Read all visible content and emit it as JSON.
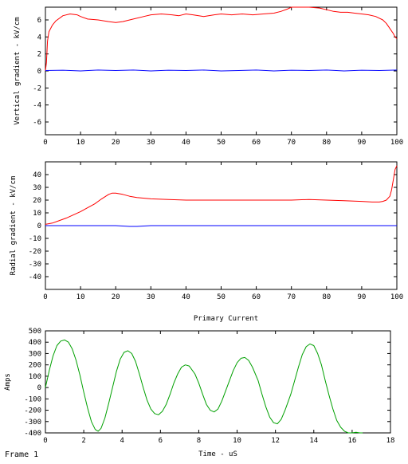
{
  "frame_label": "Frame 1",
  "colors": {
    "red": "#ff0000",
    "blue": "#0000ff",
    "green": "#00a000",
    "axis": "#000000"
  },
  "chart_data": [
    {
      "type": "line",
      "title": "",
      "xlabel": "",
      "ylabel": "Vertical gradient - kV/cm",
      "xlim": [
        0,
        100
      ],
      "ylim": [
        -7.5,
        7.5
      ],
      "xticks": [
        0,
        10,
        20,
        30,
        40,
        50,
        60,
        70,
        80,
        90,
        100
      ],
      "yticks": [
        -6,
        -4,
        -2,
        0,
        2,
        4,
        6
      ],
      "grid": false,
      "series": [
        {
          "color": "#ff0000",
          "x": [
            0,
            0.3,
            0.6,
            1,
            2,
            3,
            5,
            7,
            9,
            10,
            12,
            15,
            18,
            20,
            22,
            25,
            28,
            30,
            33,
            36,
            38,
            40,
            42,
            45,
            48,
            50,
            53,
            56,
            59,
            62,
            65,
            67,
            69,
            70,
            72,
            75,
            78,
            80,
            82,
            84,
            86,
            88,
            90,
            92,
            94,
            96,
            97,
            98,
            99,
            99.5,
            100
          ],
          "y": [
            0,
            1,
            3.5,
            4.6,
            5.4,
            5.9,
            6.5,
            6.7,
            6.6,
            6.4,
            6.1,
            6.0,
            5.8,
            5.7,
            5.8,
            6.1,
            6.4,
            6.6,
            6.7,
            6.6,
            6.5,
            6.7,
            6.6,
            6.4,
            6.6,
            6.7,
            6.6,
            6.7,
            6.6,
            6.7,
            6.8,
            7.0,
            7.3,
            7.5,
            7.6,
            7.6,
            7.4,
            7.2,
            7.0,
            6.9,
            6.9,
            6.8,
            6.7,
            6.6,
            6.4,
            6.0,
            5.6,
            5.0,
            4.4,
            4.0,
            3.8
          ]
        },
        {
          "color": "#0000ff",
          "x": [
            0,
            5,
            10,
            15,
            20,
            25,
            30,
            35,
            40,
            45,
            50,
            55,
            60,
            65,
            70,
            75,
            80,
            85,
            90,
            95,
            100
          ],
          "y": [
            0.05,
            0.08,
            0.0,
            0.1,
            0.05,
            0.1,
            0.0,
            0.08,
            0.05,
            0.1,
            0.0,
            0.05,
            0.1,
            0.0,
            0.08,
            0.05,
            0.1,
            0.0,
            0.08,
            0.05,
            0.1
          ]
        }
      ]
    },
    {
      "type": "line",
      "title": "",
      "xlabel": "",
      "ylabel": "Radial gradient - kV/cm",
      "xlim": [
        0,
        100
      ],
      "ylim": [
        -50,
        50
      ],
      "xticks": [
        0,
        10,
        20,
        30,
        40,
        50,
        60,
        70,
        80,
        90,
        100
      ],
      "yticks": [
        -40,
        -30,
        -20,
        -10,
        0,
        10,
        20,
        30,
        40
      ],
      "grid": false,
      "series": [
        {
          "color": "#ff0000",
          "x": [
            0,
            2,
            4,
            6,
            8,
            10,
            12,
            14,
            16,
            18,
            19,
            20,
            22,
            24,
            26,
            30,
            35,
            40,
            50,
            60,
            70,
            75,
            80,
            85,
            90,
            93,
            95,
            96,
            97,
            98,
            98.5,
            99,
            99.5,
            100
          ],
          "y": [
            1,
            2,
            4,
            6,
            8.5,
            11,
            14,
            17,
            21,
            24.5,
            25.5,
            25.5,
            24.5,
            23,
            22,
            21,
            20.5,
            20,
            20,
            20,
            20,
            20.5,
            20,
            19.5,
            19,
            18.5,
            18.5,
            19,
            20,
            23,
            28,
            36,
            44,
            47
          ]
        },
        {
          "color": "#0000ff",
          "x": [
            0,
            20,
            22,
            24,
            26,
            28,
            30,
            50,
            100
          ],
          "y": [
            0,
            0,
            -0.3,
            -0.6,
            -0.6,
            -0.3,
            0,
            0,
            0
          ]
        }
      ]
    },
    {
      "type": "line",
      "title": "Primary Current",
      "xlabel": "Time - uS",
      "ylabel": "Amps",
      "xlim": [
        0,
        18
      ],
      "ylim": [
        -400,
        500
      ],
      "xticks": [
        0,
        2,
        4,
        6,
        8,
        10,
        12,
        14,
        16,
        18
      ],
      "yticks": [
        -400,
        -300,
        -200,
        -100,
        0,
        100,
        200,
        300,
        400,
        500
      ],
      "grid": false,
      "series": [
        {
          "color": "#00a000",
          "x": [
            0,
            0.2,
            0.4,
            0.6,
            0.8,
            1.0,
            1.2,
            1.4,
            1.6,
            1.8,
            2.0,
            2.2,
            2.4,
            2.6,
            2.75,
            2.9,
            3.1,
            3.3,
            3.5,
            3.7,
            3.9,
            4.1,
            4.3,
            4.5,
            4.7,
            4.9,
            5.1,
            5.3,
            5.5,
            5.7,
            5.9,
            6.1,
            6.3,
            6.5,
            6.7,
            6.9,
            7.1,
            7.3,
            7.5,
            7.8,
            8.0,
            8.2,
            8.4,
            8.6,
            8.8,
            9.0,
            9.2,
            9.4,
            9.6,
            9.8,
            10.0,
            10.2,
            10.4,
            10.6,
            10.8,
            11.1,
            11.3,
            11.5,
            11.7,
            11.9,
            12.1,
            12.3,
            12.5,
            12.8,
            13.0,
            13.2,
            13.4,
            13.6,
            13.8,
            14.0,
            14.2,
            14.4,
            14.6,
            14.8,
            15.0,
            15.2,
            15.4,
            15.6,
            15.8,
            16.0,
            16.2,
            16.4,
            16.55
          ],
          "y": [
            0,
            150,
            280,
            370,
            410,
            420,
            400,
            340,
            240,
            110,
            -40,
            -180,
            -300,
            -370,
            -385,
            -360,
            -270,
            -140,
            0,
            140,
            250,
            310,
            325,
            300,
            230,
            120,
            0,
            -110,
            -190,
            -230,
            -240,
            -210,
            -150,
            -60,
            40,
            120,
            180,
            200,
            190,
            120,
            40,
            -60,
            -150,
            -200,
            -215,
            -190,
            -120,
            -30,
            60,
            150,
            220,
            258,
            265,
            240,
            180,
            60,
            -60,
            -170,
            -260,
            -310,
            -320,
            -280,
            -200,
            -60,
            60,
            180,
            290,
            360,
            385,
            370,
            300,
            200,
            60,
            -70,
            -190,
            -290,
            -350,
            -385,
            -400,
            -400,
            -395,
            -400,
            -400
          ]
        }
      ]
    }
  ]
}
